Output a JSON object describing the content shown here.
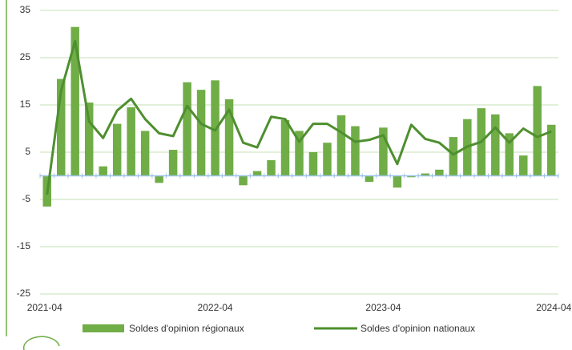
{
  "chart_data": {
    "type": "bar_line",
    "categories": [
      "2021-04",
      null,
      null,
      null,
      null,
      null,
      null,
      null,
      null,
      null,
      null,
      null,
      "2022-04",
      null,
      null,
      null,
      null,
      null,
      null,
      null,
      null,
      null,
      null,
      null,
      "2023-04",
      null,
      null,
      null,
      null,
      null,
      null,
      null,
      null,
      null,
      null,
      null,
      "2024-04"
    ],
    "series": [
      {
        "name": "Soldes d'opinion régionaux",
        "type": "bar",
        "color": "#70ad47",
        "values": [
          -6.5,
          20.5,
          31.5,
          15.5,
          2,
          11,
          14.5,
          9.5,
          -1.5,
          5.5,
          19.8,
          18.2,
          20.2,
          16.2,
          -2,
          1,
          3.3,
          11.8,
          9.5,
          5,
          7,
          12.8,
          10.5,
          -1.3,
          10.2,
          -2.5,
          -0.3,
          0.5,
          1.3,
          8.2,
          12,
          14.3,
          13,
          9,
          4.3,
          19,
          10.8
        ]
      },
      {
        "name": "Soldes d'opinion nationaux",
        "type": "line",
        "color": "#4e8f2f",
        "values": [
          -4,
          18,
          28.5,
          11.5,
          8,
          13.8,
          16.3,
          12,
          9,
          8.4,
          14.8,
          11,
          9.6,
          14,
          7,
          6,
          12.5,
          12,
          7.2,
          11,
          11,
          9.2,
          7.2,
          7.6,
          8.6,
          2.5,
          10.8,
          7.8,
          7,
          4.5,
          6.2,
          7.2,
          10.2,
          7,
          10,
          8.2,
          9.4
        ]
      }
    ],
    "ylim": [
      -25,
      35
    ],
    "yticks": [
      -25,
      -15,
      -5,
      5,
      15,
      25,
      35
    ],
    "grid": true,
    "legend": "bottom"
  }
}
